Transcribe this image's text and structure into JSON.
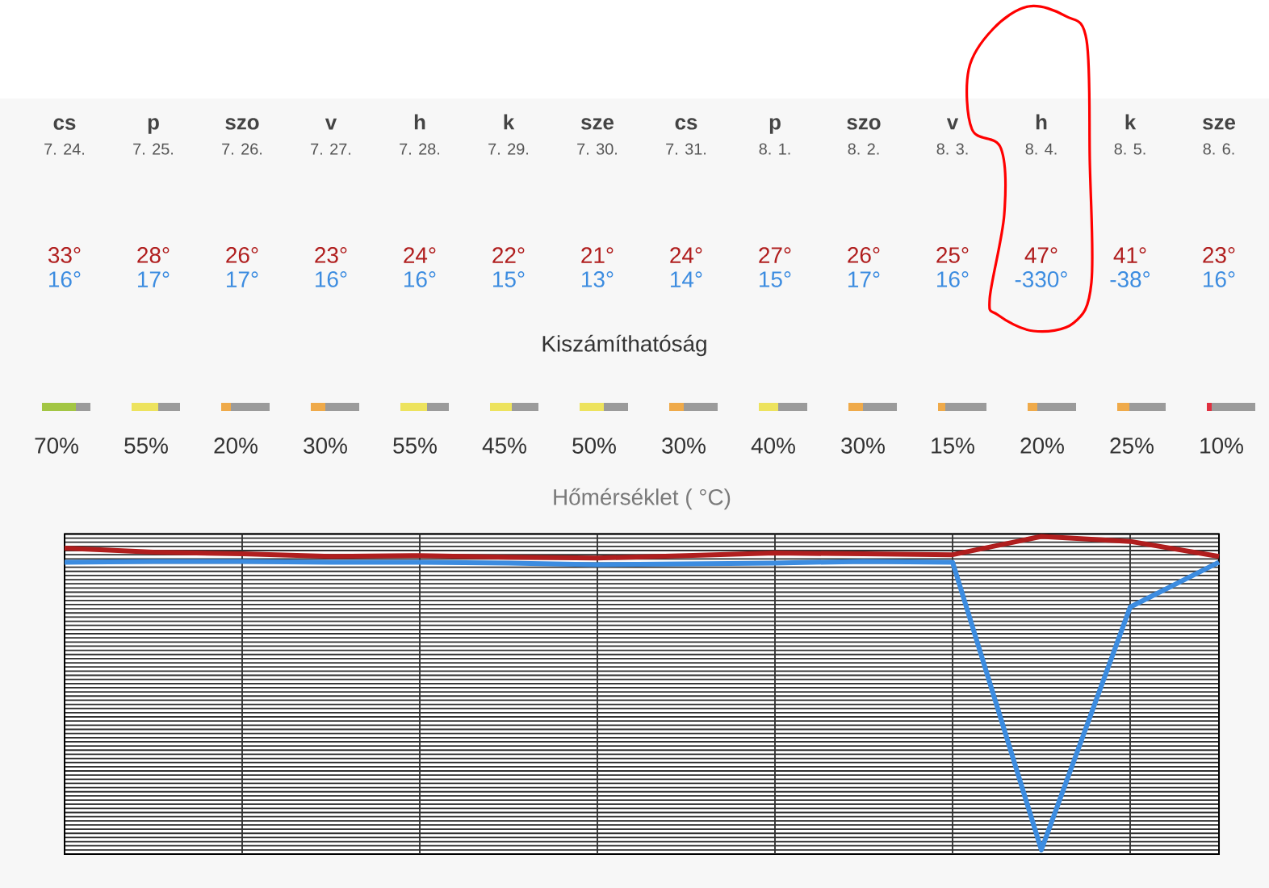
{
  "chart_data": [
    {
      "type": "line",
      "title": "Hőmérséklet ( °C)",
      "categories": [
        "cs\n7. 24.",
        "p\n7. 25.",
        "szo\n7. 26.",
        "v\n7. 27.",
        "h\n7. 28.",
        "k\n7. 29.",
        "sze\n7. 30.",
        "cs\n7. 31.",
        "p\n8. 1.",
        "szo\n8. 2.",
        "v\n8. 3.",
        "h\n8. 4.",
        "k\n8. 5.",
        "sze\n8. 6."
      ],
      "series": [
        {
          "color": "#b01e1e",
          "values": [
            33,
            28,
            26,
            23,
            24,
            22,
            21,
            24,
            27,
            26,
            25,
            47,
            41,
            23
          ],
          "value_labels": [
            "33°",
            "28°",
            "26°",
            "23°",
            "24°",
            "22°",
            "21°",
            "24°",
            "27°",
            "26°",
            "25°",
            "47°",
            "41°",
            "23°"
          ]
        },
        {
          "color": "#3c8ce0",
          "values": [
            16,
            17,
            17,
            16,
            16,
            15,
            13,
            14,
            15,
            17,
            16,
            -330,
            -38,
            16
          ],
          "value_labels": [
            "16°",
            "17°",
            "17°",
            "16°",
            "16°",
            "15°",
            "13°",
            "14°",
            "15°",
            "17°",
            "16°",
            "-330°",
            "-38°",
            "16°"
          ]
        }
      ],
      "ylim": [
        -335,
        50
      ],
      "yticks": [
        {
          "value": -335,
          "label": null
        },
        {
          "value": -330,
          "label": null
        },
        {
          "value": -325,
          "label": null
        },
        {
          "value": -320,
          "label": null
        },
        {
          "value": -315,
          "label": null
        },
        {
          "value": -310,
          "label": null
        },
        {
          "value": -305,
          "label": null
        },
        {
          "value": -300,
          "label": null
        },
        {
          "value": -295,
          "label": null
        },
        {
          "value": -290,
          "label": null
        },
        {
          "value": -285,
          "label": null
        },
        {
          "value": -280,
          "label": null
        },
        {
          "value": -275,
          "label": null
        },
        {
          "value": -270,
          "label": null
        },
        {
          "value": -265,
          "label": null
        },
        {
          "value": -260,
          "label": null
        },
        {
          "value": -255,
          "label": null
        },
        {
          "value": -250,
          "label": null
        },
        {
          "value": -245,
          "label": null
        },
        {
          "value": -240,
          "label": null
        },
        {
          "value": -235,
          "label": null
        },
        {
          "value": -230,
          "label": null
        },
        {
          "value": -225,
          "label": null
        },
        {
          "value": -220,
          "label": null
        },
        {
          "value": -215,
          "label": null
        },
        {
          "value": -210,
          "label": null
        },
        {
          "value": -205,
          "label": null
        },
        {
          "value": -200,
          "label": null
        },
        {
          "value": -195,
          "label": null
        },
        {
          "value": -190,
          "label": null
        },
        {
          "value": -185,
          "label": null
        },
        {
          "value": -180,
          "label": null
        },
        {
          "value": -175,
          "label": null
        },
        {
          "value": -170,
          "label": null
        },
        {
          "value": -165,
          "label": null
        },
        {
          "value": -160,
          "label": null
        },
        {
          "value": -155,
          "label": null
        },
        {
          "value": -150,
          "label": null
        },
        {
          "value": -145,
          "label": null
        },
        {
          "value": -140,
          "label": null
        },
        {
          "value": -135,
          "label": null
        },
        {
          "value": -130,
          "label": null
        },
        {
          "value": -125,
          "label": null
        },
        {
          "value": -120,
          "label": null
        },
        {
          "value": -115,
          "label": null
        },
        {
          "value": -110,
          "label": null
        },
        {
          "value": -105,
          "label": null
        },
        {
          "value": -100,
          "label": null
        },
        {
          "value": -95,
          "label": null
        },
        {
          "value": -90,
          "label": null
        },
        {
          "value": -85,
          "label": null
        },
        {
          "value": -80,
          "label": null
        },
        {
          "value": -75,
          "label": null
        },
        {
          "value": -70,
          "label": null
        },
        {
          "value": -65,
          "label": null
        },
        {
          "value": -60,
          "label": null
        },
        {
          "value": -55,
          "label": null
        },
        {
          "value": -50,
          "label": null
        },
        {
          "value": -45,
          "label": null
        },
        {
          "value": -40,
          "label": null
        },
        {
          "value": -35,
          "label": null
        },
        {
          "value": -30,
          "label": null
        },
        {
          "value": -25,
          "label": null
        },
        {
          "value": -20,
          "label": null
        },
        {
          "value": -15,
          "label": null
        },
        {
          "value": -10,
          "label": null
        },
        {
          "value": -5,
          "label": null
        },
        {
          "value": 0,
          "label": null
        },
        {
          "value": 5,
          "label": null
        },
        {
          "value": 10,
          "label": null
        },
        {
          "value": 15,
          "label": null
        },
        {
          "value": 20,
          "label": null
        },
        {
          "value": 25,
          "label": null
        },
        {
          "value": 30,
          "label": null
        },
        {
          "value": 35,
          "label": null
        },
        {
          "value": 40,
          "label": null
        },
        {
          "value": 45,
          "label": null
        },
        {
          "value": 50,
          "label": null
        }
      ],
      "grid": true,
      "tick_labels": "x"
    },
    {
      "type": "other",
      "title": "Kiszámíthatóság",
      "categories": [
        null,
        null,
        null,
        null,
        null,
        null,
        null,
        null,
        null,
        null,
        null,
        null,
        null,
        null
      ],
      "values": [
        70,
        55,
        20,
        30,
        55,
        45,
        50,
        30,
        40,
        30,
        15,
        20,
        25,
        10
      ],
      "value_labels": [
        "70%",
        "55%",
        "20%",
        "30%",
        "55%",
        "45%",
        "50%",
        "30%",
        "40%",
        "30%",
        "15%",
        "20%",
        "25%",
        "10%"
      ],
      "colors": [
        "#a3c644",
        "#ede35e",
        "#efaa4a",
        "#efaa4a",
        "#ede35e",
        "#ede35e",
        "#ede35e",
        "#efaa4a",
        "#ede35e",
        "#efaa4a",
        "#efaa4a",
        "#efaa4a",
        "#efaa4a",
        "#e03040"
      ]
    }
  ]
}
